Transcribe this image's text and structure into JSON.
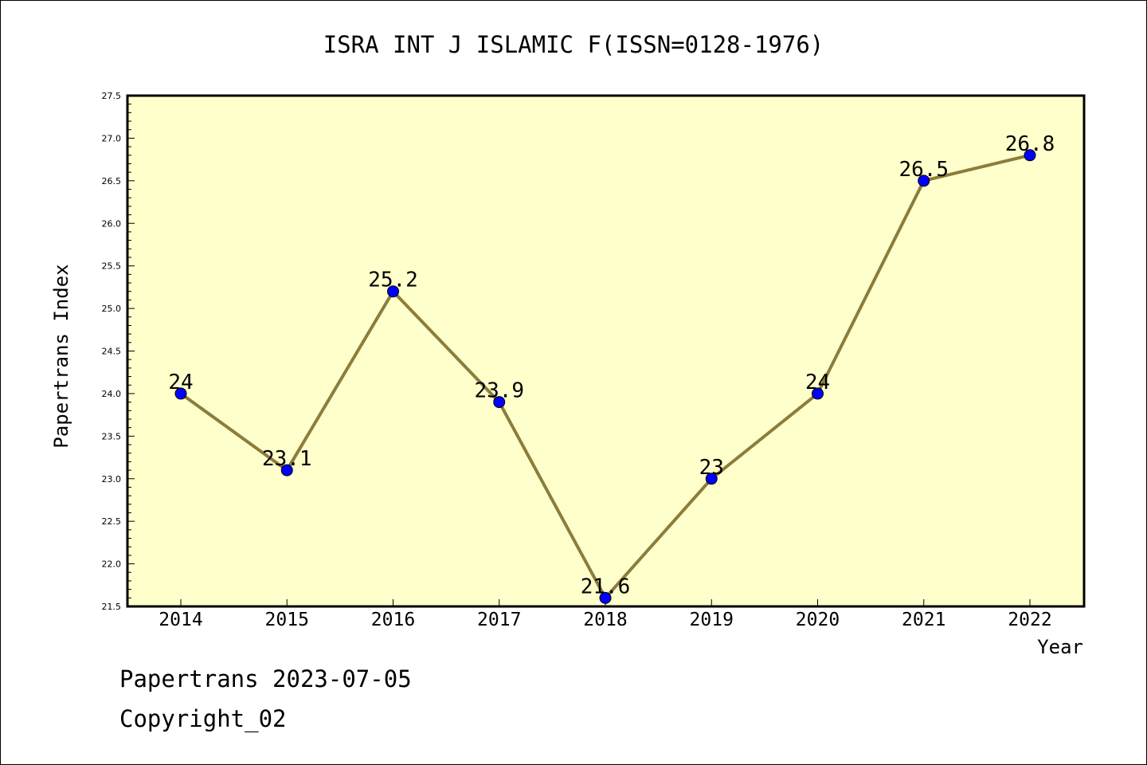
{
  "chart_data": {
    "type": "line",
    "title": "ISRA INT J ISLAMIC F(ISSN=0128-1976)",
    "xlabel": "Year",
    "ylabel": "Papertrans Index",
    "categories": [
      "2014",
      "2015",
      "2016",
      "2017",
      "2018",
      "2019",
      "2020",
      "2021",
      "2022"
    ],
    "series": [
      {
        "values": [
          24,
          23.1,
          25.2,
          23.9,
          21.6,
          23,
          24,
          26.5,
          26.8
        ],
        "labels": [
          "24",
          "23.1",
          "25.2",
          "23.9",
          "21.6",
          "23",
          "24",
          "26.5",
          "26.8"
        ]
      }
    ],
    "ylim": [
      21.5,
      27.5
    ],
    "yticks": [
      "21.5",
      "22.0",
      "22.5",
      "23.0",
      "23.5",
      "24.0",
      "24.5",
      "25.0",
      "25.5",
      "26.0",
      "26.5",
      "27.0",
      "27.5"
    ],
    "grid": false,
    "colors": {
      "plot_background": "#ffffcc",
      "line": "#8b7d3a",
      "marker": "#0000ff"
    }
  },
  "footer": {
    "line1": "Papertrans 2023-07-05",
    "line2": "Copyright_02"
  }
}
